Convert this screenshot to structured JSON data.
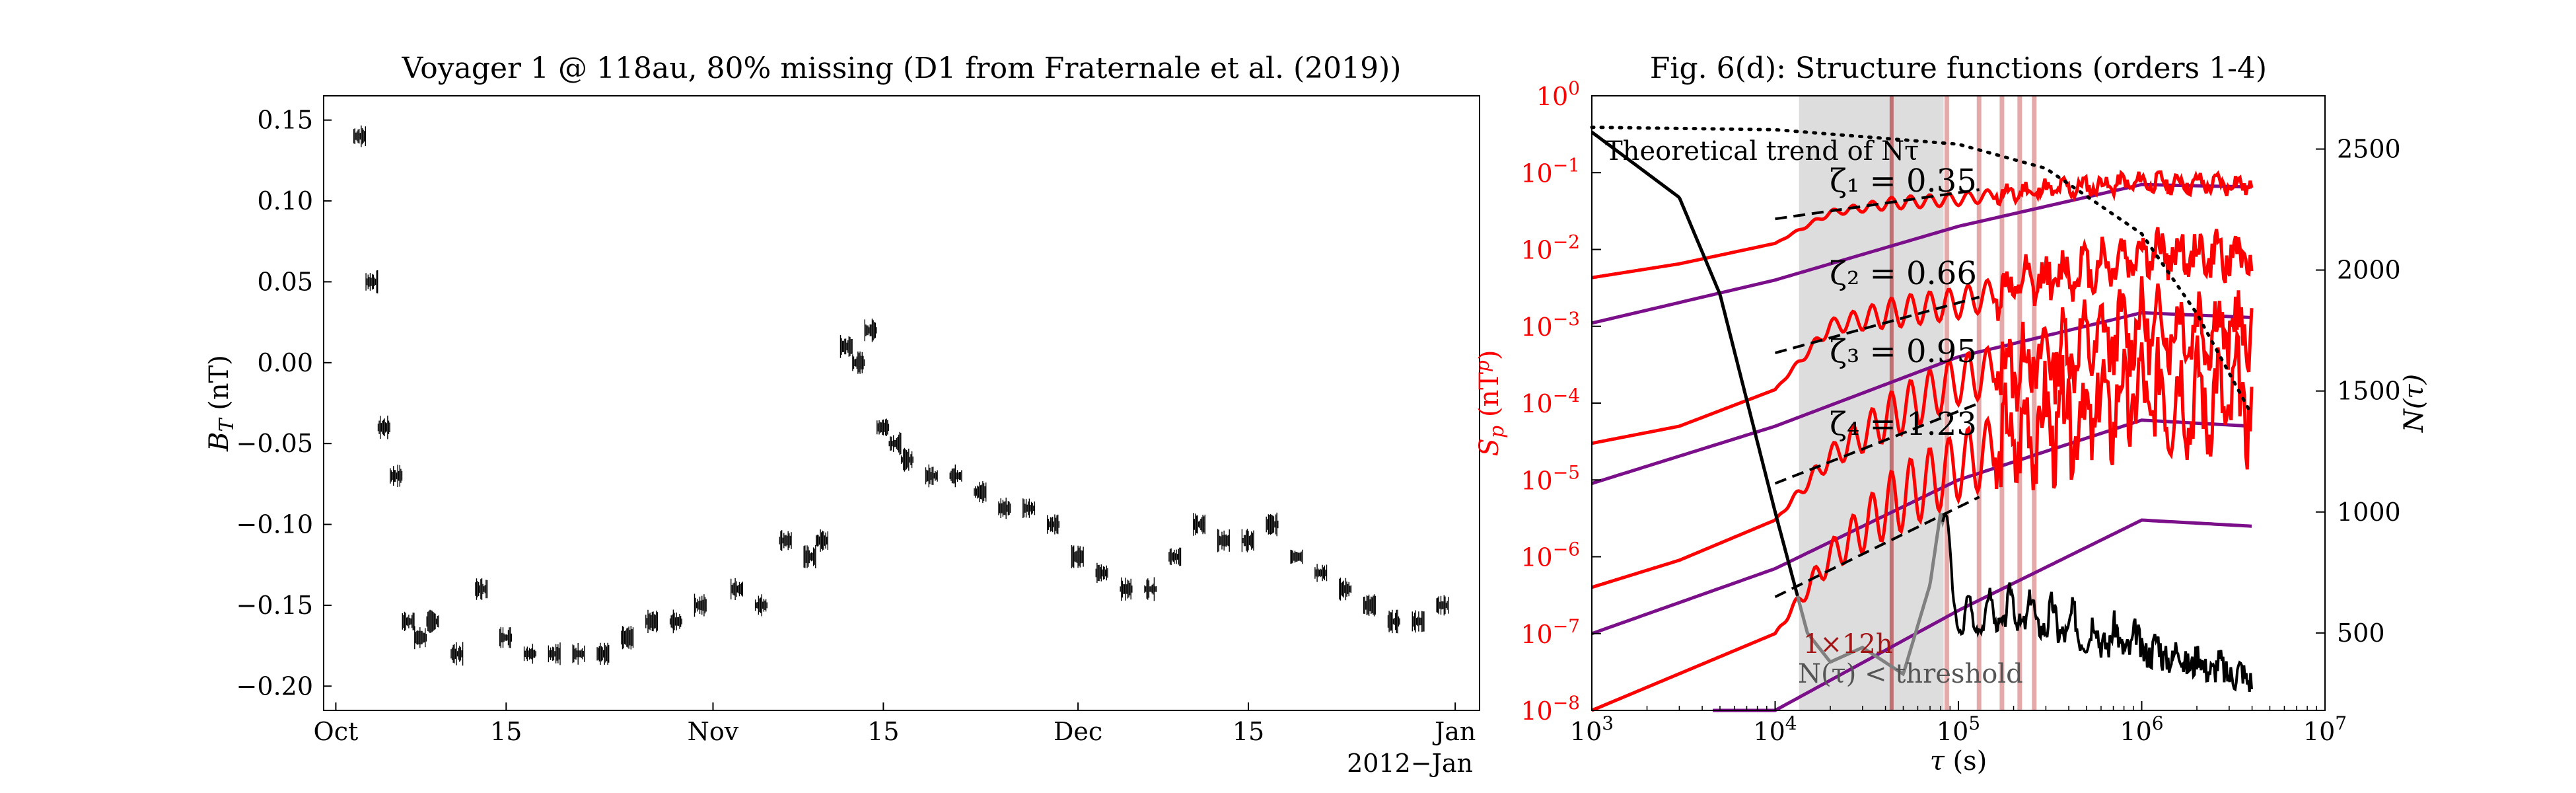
{
  "chart_data": [
    {
      "type": "line",
      "title": "Voyager 1 @ 118au, 80% missing (D1 from Fraternale et al. (2019))",
      "ylabel": "B_T (nT)",
      "xlabel": "",
      "x_offset_label": "2012−Jan",
      "xlim": [
        "2012-09-30",
        "2013-01-03"
      ],
      "ylim": [
        -0.215,
        0.165
      ],
      "x_ticks": [
        {
          "date": "2012-10-01",
          "label": "Oct"
        },
        {
          "date": "2012-10-15",
          "label": "15"
        },
        {
          "date": "2012-11-01",
          "label": "Nov"
        },
        {
          "date": "2012-11-15",
          "label": "15"
        },
        {
          "date": "2012-12-01",
          "label": "Dec"
        },
        {
          "date": "2012-12-15",
          "label": "15"
        },
        {
          "date": "2013-01-01",
          "label": "Jan"
        }
      ],
      "y_ticks": [
        0.15,
        0.1,
        0.05,
        0.0,
        -0.05,
        -0.1,
        -0.15,
        -0.2
      ],
      "y_tick_labels": [
        "0.15",
        "0.10",
        "0.05",
        "0.00",
        "−0.05",
        "−0.10",
        "−0.15",
        "−0.20"
      ],
      "grid": false,
      "series": [
        {
          "color": "#000000",
          "x": [
            "2012-10-03",
            "2012-10-04",
            "2012-10-05",
            "2012-10-06",
            "2012-10-07",
            "2012-10-08",
            "2012-10-09",
            "2012-10-11",
            "2012-10-13",
            "2012-10-15",
            "2012-10-17",
            "2012-10-19",
            "2012-10-21",
            "2012-10-23",
            "2012-10-25",
            "2012-10-27",
            "2012-10-29",
            "2012-10-31",
            "2012-11-03",
            "2012-11-05",
            "2012-11-07",
            "2012-11-09",
            "2012-11-10",
            "2012-11-12",
            "2012-11-13",
            "2012-11-14",
            "2012-11-15",
            "2012-11-16",
            "2012-11-17",
            "2012-11-19",
            "2012-11-21",
            "2012-11-23",
            "2012-11-25",
            "2012-11-27",
            "2012-11-29",
            "2012-12-01",
            "2012-12-03",
            "2012-12-05",
            "2012-12-07",
            "2012-12-09",
            "2012-12-11",
            "2012-12-13",
            "2012-12-15",
            "2012-12-17",
            "2012-12-19",
            "2012-12-21",
            "2012-12-23",
            "2012-12-25",
            "2012-12-27",
            "2012-12-29",
            "2012-12-31"
          ],
          "y": [
            0.14,
            0.05,
            -0.04,
            -0.07,
            -0.16,
            -0.17,
            -0.16,
            -0.18,
            -0.14,
            -0.17,
            -0.18,
            -0.18,
            -0.18,
            -0.18,
            -0.17,
            -0.16,
            -0.16,
            -0.15,
            -0.14,
            -0.15,
            -0.11,
            -0.12,
            -0.11,
            0.01,
            0.0,
            0.02,
            -0.04,
            -0.05,
            -0.06,
            -0.07,
            -0.07,
            -0.08,
            -0.09,
            -0.09,
            -0.1,
            -0.12,
            -0.13,
            -0.14,
            -0.14,
            -0.12,
            -0.1,
            -0.11,
            -0.11,
            -0.1,
            -0.12,
            -0.13,
            -0.14,
            -0.15,
            -0.16,
            -0.16,
            -0.15
          ]
        }
      ]
    },
    {
      "type": "line",
      "title": "Fig. 6(d): Structure functions (orders 1-4)",
      "xlabel": "τ (s)",
      "ylabel": "S_p (nT^p)",
      "ylabel_right": "N(τ)",
      "x_scale": "log",
      "y_scale": "log",
      "xlim": [
        1000,
        10000000
      ],
      "ylim": [
        1e-08,
        1
      ],
      "ylim_right": [
        180,
        2720
      ],
      "x_ticks": [
        1000,
        10000,
        100000,
        1000000,
        10000000
      ],
      "x_tick_labels": [
        "10^3",
        "10^4",
        "10^5",
        "10^6",
        "10^7"
      ],
      "y_ticks": [
        1e-08,
        1e-07,
        1e-06,
        1e-05,
        0.0001,
        0.001,
        0.01,
        0.1,
        1
      ],
      "y_tick_labels": [
        "10^-8",
        "10^-7",
        "10^-6",
        "10^-5",
        "10^-4",
        "10^-3",
        "10^-2",
        "10^-1",
        "10^0"
      ],
      "y_right_ticks": [
        500,
        1000,
        1500,
        2000,
        2500
      ],
      "grid": false,
      "colors": {
        "red": "#ff0000",
        "purple": "#7b0f8a",
        "gray": "#808080",
        "shade": "#dddddd",
        "vline": "#a31515"
      },
      "annotations": {
        "theoretical": "Theoretical trend of Nτ",
        "zeta1": "ζ₁ = 0.35",
        "zeta2": "ζ₂ = 0.66",
        "zeta3": "ζ₃ = 0.95",
        "zeta4": "ζ₄ = 1.23",
        "lag_label": "1×12h",
        "threshold_label": "N(τ) < threshold"
      },
      "shaded_range_s": [
        13500,
        83000
      ],
      "vline_dark_s": 43200,
      "vlines_light_s": [
        86400,
        129600,
        172800,
        216000,
        259200
      ],
      "sf_red": [
        {
          "order": 1,
          "x": [
            1000,
            3000,
            10000,
            20000,
            43200,
            100000,
            300000,
            1000000,
            4000000
          ],
          "y": [
            0.0043,
            0.0065,
            0.012,
            0.03,
            0.04,
            0.045,
            0.06,
            0.075,
            0.07
          ]
        },
        {
          "order": 2,
          "x": [
            1000,
            3000,
            10000,
            20000,
            43200,
            100000,
            300000,
            1000000,
            4000000
          ],
          "y": [
            3e-05,
            5e-05,
            0.00015,
            0.001,
            0.0015,
            0.002,
            0.004,
            0.009,
            0.008
          ]
        },
        {
          "order": 3,
          "x": [
            1000,
            3000,
            10000,
            20000,
            43200,
            100000,
            300000,
            1000000,
            4000000
          ],
          "y": [
            4e-07,
            9e-07,
            3e-06,
            2e-05,
            7e-05,
            0.0002,
            0.0004,
            0.001,
            0.0009
          ]
        },
        {
          "order": 4,
          "x": [
            1000,
            3000,
            10000,
            20000,
            43200,
            100000,
            300000,
            1000000,
            4000000
          ],
          "y": [
            1e-08,
            3e-08,
            1e-07,
            1e-06,
            5e-06,
            1.5e-05,
            5e-05,
            0.00012,
            0.0001
          ]
        }
      ],
      "sf_purple": [
        {
          "order": 1,
          "x": [
            1000,
            10000,
            100000,
            1000000,
            4000000
          ],
          "y": [
            0.0011,
            0.004,
            0.02,
            0.07,
            0.065
          ]
        },
        {
          "order": 2,
          "x": [
            1000,
            10000,
            100000,
            1000000,
            4000000
          ],
          "y": [
            9e-06,
            5e-05,
            0.0004,
            0.0015,
            0.0013
          ]
        },
        {
          "order": 3,
          "x": [
            1000,
            10000,
            100000,
            1000000,
            4000000
          ],
          "y": [
            1e-07,
            7e-07,
            1e-05,
            6e-05,
            5e-05
          ]
        },
        {
          "order": 4,
          "x": [
            1000,
            10000,
            100000,
            1000000,
            4000000
          ],
          "y": [
            1e-09,
            1e-08,
            2e-07,
            3e-06,
            2.5e-06
          ]
        }
      ],
      "fit_lines": [
        {
          "order": 1,
          "x": [
            10000,
            130000
          ],
          "y": [
            0.025,
            0.06
          ]
        },
        {
          "order": 2,
          "x": [
            10000,
            130000
          ],
          "y": [
            0.00045,
            0.0024
          ]
        },
        {
          "order": 3,
          "x": [
            10000,
            130000
          ],
          "y": [
            9e-06,
            0.0001
          ]
        },
        {
          "order": 4,
          "x": [
            10000,
            130000
          ],
          "y": [
            3e-07,
            6e-06
          ]
        }
      ],
      "n_tau": {
        "x": [
          1000,
          3000,
          5000,
          10000,
          15000,
          20000,
          30000,
          50000,
          70000,
          80000,
          100000,
          200000,
          500000,
          1000000,
          4000000
        ],
        "y": [
          2570,
          2300,
          1900,
          1000,
          500,
          380,
          440,
          330,
          700,
          1000,
          500,
          550,
          470,
          420,
          300
        ]
      },
      "n_tau_theoretical": {
        "x": [
          1000,
          10000,
          100000,
          300000,
          1000000,
          2000000,
          4000000
        ],
        "y": [
          2590,
          2580,
          2520,
          2420,
          2150,
          1820,
          1400
        ]
      }
    }
  ]
}
